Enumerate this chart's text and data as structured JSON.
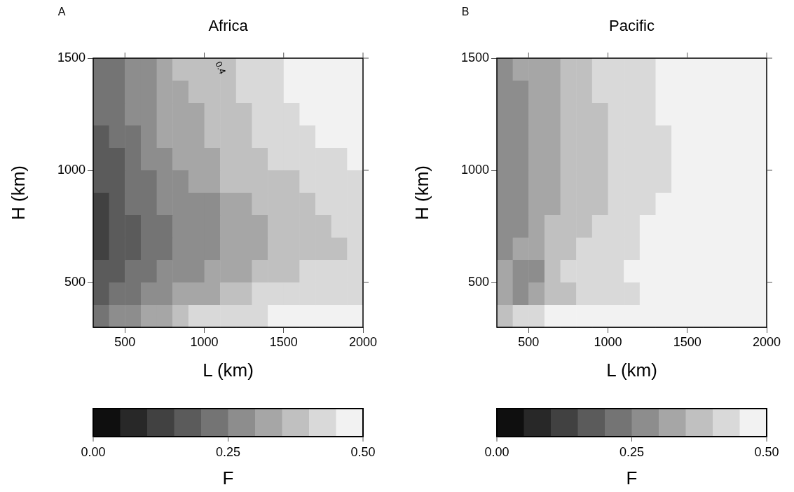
{
  "chart_data": [
    {
      "type": "heatmap",
      "title": "Africa",
      "xlabel": "L (km)",
      "ylabel": "H (km)",
      "clabel": "F",
      "annotations": [
        "A",
        "0.4"
      ],
      "xlim": [
        300,
        2000
      ],
      "xticks": [
        500,
        1000,
        1500,
        2000
      ],
      "ylim": [
        300,
        1500
      ],
      "yticks": [
        500,
        1000,
        1500
      ],
      "clim": [
        0,
        0.5
      ],
      "cticks": [
        {
          "value": 0,
          "label": "0.00"
        },
        {
          "value": 0.25,
          "label": "0.25"
        },
        {
          "value": 0.5,
          "label": "0.50"
        }
      ],
      "cells": [
        [
          0.225,
          0.225,
          0.275,
          0.275,
          0.325,
          0.375,
          0.375,
          0.375,
          0.375,
          0.425,
          0.425,
          0.425,
          0.475,
          0.475,
          0.475,
          0.475,
          0.475
        ],
        [
          0.225,
          0.225,
          0.275,
          0.275,
          0.325,
          0.325,
          0.375,
          0.375,
          0.375,
          0.425,
          0.425,
          0.425,
          0.475,
          0.475,
          0.475,
          0.475,
          0.475
        ],
        [
          0.225,
          0.225,
          0.275,
          0.275,
          0.325,
          0.325,
          0.325,
          0.375,
          0.375,
          0.375,
          0.425,
          0.425,
          0.425,
          0.475,
          0.475,
          0.475,
          0.475
        ],
        [
          0.175,
          0.225,
          0.225,
          0.275,
          0.325,
          0.325,
          0.325,
          0.375,
          0.375,
          0.375,
          0.425,
          0.425,
          0.425,
          0.425,
          0.475,
          0.475,
          0.475
        ],
        [
          0.175,
          0.175,
          0.225,
          0.275,
          0.275,
          0.325,
          0.325,
          0.325,
          0.375,
          0.375,
          0.375,
          0.425,
          0.425,
          0.425,
          0.425,
          0.425,
          0.475
        ],
        [
          0.175,
          0.175,
          0.225,
          0.225,
          0.275,
          0.275,
          0.325,
          0.325,
          0.375,
          0.375,
          0.375,
          0.375,
          0.375,
          0.425,
          0.425,
          0.425,
          0.425
        ],
        [
          0.125,
          0.175,
          0.225,
          0.225,
          0.275,
          0.275,
          0.275,
          0.275,
          0.325,
          0.325,
          0.375,
          0.375,
          0.375,
          0.375,
          0.425,
          0.425,
          0.425
        ],
        [
          0.125,
          0.175,
          0.175,
          0.225,
          0.225,
          0.275,
          0.275,
          0.275,
          0.325,
          0.325,
          0.325,
          0.375,
          0.375,
          0.375,
          0.375,
          0.425,
          0.425
        ],
        [
          0.125,
          0.175,
          0.175,
          0.225,
          0.225,
          0.275,
          0.275,
          0.275,
          0.325,
          0.325,
          0.325,
          0.375,
          0.375,
          0.375,
          0.375,
          0.375,
          0.425
        ],
        [
          0.175,
          0.175,
          0.225,
          0.225,
          0.275,
          0.275,
          0.275,
          0.325,
          0.325,
          0.325,
          0.375,
          0.375,
          0.375,
          0.425,
          0.425,
          0.425,
          0.425
        ],
        [
          0.175,
          0.225,
          0.225,
          0.275,
          0.275,
          0.325,
          0.325,
          0.325,
          0.375,
          0.375,
          0.425,
          0.425,
          0.425,
          0.425,
          0.425,
          0.425,
          0.425
        ],
        [
          0.225,
          0.275,
          0.275,
          0.325,
          0.325,
          0.375,
          0.425,
          0.425,
          0.425,
          0.425,
          0.425,
          0.475,
          0.475,
          0.475,
          0.475,
          0.475,
          0.475
        ]
      ]
    },
    {
      "type": "heatmap",
      "title": "Pacific",
      "xlabel": "L (km)",
      "ylabel": "H (km)",
      "clabel": "F",
      "annotations": [
        "B"
      ],
      "xlim": [
        300,
        2000
      ],
      "xticks": [
        500,
        1000,
        1500,
        2000
      ],
      "ylim": [
        300,
        1500
      ],
      "yticks": [
        500,
        1000,
        1500
      ],
      "clim": [
        0,
        0.5
      ],
      "cticks": [
        {
          "value": 0,
          "label": "0.00"
        },
        {
          "value": 0.25,
          "label": "0.25"
        },
        {
          "value": 0.5,
          "label": "0.50"
        }
      ],
      "cells": [
        [
          0.275,
          0.325,
          0.325,
          0.325,
          0.375,
          0.375,
          0.425,
          0.425,
          0.425,
          0.425,
          0.475,
          0.475,
          0.475,
          0.475,
          0.475,
          0.475,
          0.475
        ],
        [
          0.275,
          0.275,
          0.325,
          0.325,
          0.375,
          0.375,
          0.425,
          0.425,
          0.425,
          0.425,
          0.475,
          0.475,
          0.475,
          0.475,
          0.475,
          0.475,
          0.475
        ],
        [
          0.275,
          0.275,
          0.325,
          0.325,
          0.375,
          0.375,
          0.375,
          0.425,
          0.425,
          0.425,
          0.475,
          0.475,
          0.475,
          0.475,
          0.475,
          0.475,
          0.475
        ],
        [
          0.275,
          0.275,
          0.325,
          0.325,
          0.375,
          0.375,
          0.375,
          0.425,
          0.425,
          0.425,
          0.425,
          0.475,
          0.475,
          0.475,
          0.475,
          0.475,
          0.475
        ],
        [
          0.275,
          0.275,
          0.325,
          0.325,
          0.375,
          0.375,
          0.375,
          0.425,
          0.425,
          0.425,
          0.425,
          0.475,
          0.475,
          0.475,
          0.475,
          0.475,
          0.475
        ],
        [
          0.275,
          0.275,
          0.325,
          0.325,
          0.375,
          0.375,
          0.375,
          0.425,
          0.425,
          0.425,
          0.425,
          0.475,
          0.475,
          0.475,
          0.475,
          0.475,
          0.475
        ],
        [
          0.275,
          0.275,
          0.325,
          0.325,
          0.375,
          0.375,
          0.375,
          0.425,
          0.425,
          0.425,
          0.475,
          0.475,
          0.475,
          0.475,
          0.475,
          0.475,
          0.475
        ],
        [
          0.275,
          0.275,
          0.325,
          0.375,
          0.375,
          0.375,
          0.425,
          0.425,
          0.425,
          0.475,
          0.475,
          0.475,
          0.475,
          0.475,
          0.475,
          0.475,
          0.475
        ],
        [
          0.275,
          0.325,
          0.325,
          0.375,
          0.375,
          0.425,
          0.425,
          0.425,
          0.425,
          0.475,
          0.475,
          0.475,
          0.475,
          0.475,
          0.475,
          0.475,
          0.475
        ],
        [
          0.325,
          0.275,
          0.275,
          0.375,
          0.425,
          0.425,
          0.425,
          0.425,
          0.475,
          0.475,
          0.475,
          0.475,
          0.475,
          0.475,
          0.475,
          0.475,
          0.475
        ],
        [
          0.325,
          0.275,
          0.325,
          0.375,
          0.375,
          0.425,
          0.425,
          0.425,
          0.425,
          0.475,
          0.475,
          0.475,
          0.475,
          0.475,
          0.475,
          0.475,
          0.475
        ],
        [
          0.375,
          0.425,
          0.425,
          0.475,
          0.475,
          0.475,
          0.475,
          0.475,
          0.475,
          0.475,
          0.475,
          0.475,
          0.475,
          0.475,
          0.475,
          0.475,
          0.475
        ]
      ]
    }
  ]
}
